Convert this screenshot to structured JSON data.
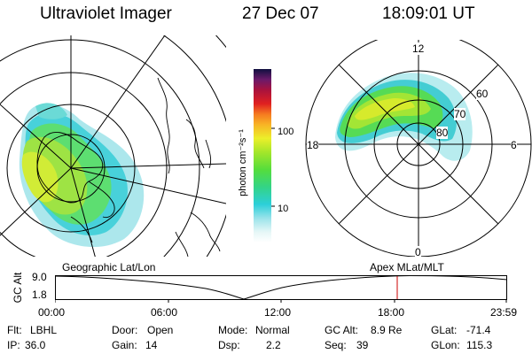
{
  "header": {
    "title": "Ultraviolet Imager",
    "date": "27 Dec 07",
    "time": "18:09:01 UT"
  },
  "colorbar": {
    "ylabel": "photon cm⁻²s⁻¹",
    "ticks": [
      "100",
      "10"
    ],
    "scale": "log"
  },
  "geo_panel": {
    "caption": "Geographic Lat/Lon"
  },
  "mag_panel": {
    "caption": "Apex MLat/MLT",
    "mlt_labels": {
      "top": "12",
      "right": "6",
      "bottom": "0",
      "left": "18"
    },
    "mlat_labels": [
      "60",
      "70",
      "80"
    ]
  },
  "timeline": {
    "ylabel": "GC Alt",
    "yticks": [
      "9.0",
      "1.8"
    ],
    "xticks": [
      "00:00",
      "06:00",
      "12:00",
      "18:00",
      "23:59"
    ],
    "current_marker_color": "#cc0000"
  },
  "info": {
    "row1": [
      {
        "k": "Flt:",
        "v": "LBHL"
      },
      {
        "k": "Door:",
        "v": "Open"
      },
      {
        "k": "Mode:",
        "v": "Normal"
      },
      {
        "k": "GC Alt:",
        "v": "8.9 Re"
      },
      {
        "k": "GLat:",
        "v": "-71.4"
      }
    ],
    "row2": [
      {
        "k": "IP:",
        "v": "36.0"
      },
      {
        "k": "Gain:",
        "v": "14"
      },
      {
        "k": "Dsp:",
        "v": "2.2"
      },
      {
        "k": "Seq:",
        "v": "39"
      },
      {
        "k": "GLon:",
        "v": "115.3"
      }
    ]
  }
}
